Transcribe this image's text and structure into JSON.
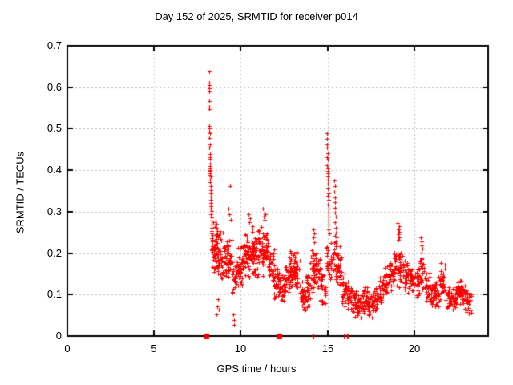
{
  "chart_data": {
    "type": "scatter",
    "title": "Day 152 of 2025, SRMTID for receiver p014",
    "xlabel": "GPS time / hours",
    "ylabel": "SRMTID / TECUs",
    "xlim": [
      0,
      24.25
    ],
    "ylim": [
      0,
      0.7
    ],
    "xticks": [
      0,
      5,
      10,
      15,
      20
    ],
    "yticks": [
      0,
      0.1,
      0.2,
      0.3,
      0.4,
      0.5,
      0.6,
      0.7
    ],
    "grid": true,
    "legend_position": "none",
    "marker": {
      "glyph": "plus",
      "color": "#ff0000",
      "size": 5
    },
    "grid_color": "#bdbdbd",
    "border_color": "#000000",
    "background": "#ffffff",
    "points": [
      [
        8.17,
        0.638
      ],
      [
        8.16,
        0.612
      ],
      [
        8.18,
        0.605
      ],
      [
        8.17,
        0.598
      ],
      [
        8.16,
        0.59
      ],
      [
        8.17,
        0.566
      ],
      [
        8.18,
        0.553
      ],
      [
        8.19,
        0.547
      ],
      [
        8.17,
        0.506
      ],
      [
        8.18,
        0.5
      ],
      [
        8.19,
        0.494
      ],
      [
        8.2,
        0.489
      ],
      [
        8.18,
        0.478
      ],
      [
        8.2,
        0.462
      ],
      [
        8.19,
        0.454
      ],
      [
        8.21,
        0.438
      ],
      [
        8.2,
        0.431
      ],
      [
        8.22,
        0.427
      ],
      [
        8.21,
        0.415
      ],
      [
        8.22,
        0.41
      ],
      [
        8.23,
        0.405
      ],
      [
        8.22,
        0.401
      ],
      [
        8.24,
        0.398
      ],
      [
        8.23,
        0.393
      ],
      [
        8.22,
        0.388
      ],
      [
        8.25,
        0.384
      ],
      [
        8.24,
        0.377
      ],
      [
        8.23,
        0.371
      ],
      [
        8.26,
        0.362
      ],
      [
        8.25,
        0.352
      ],
      [
        8.27,
        0.344
      ],
      [
        8.26,
        0.337
      ],
      [
        8.28,
        0.329
      ],
      [
        8.27,
        0.321
      ],
      [
        8.29,
        0.314
      ],
      [
        8.28,
        0.307
      ],
      [
        8.3,
        0.301
      ],
      [
        8.29,
        0.294
      ],
      [
        8.31,
        0.287
      ],
      [
        8.3,
        0.278
      ],
      [
        8.32,
        0.269
      ],
      [
        8.31,
        0.261
      ],
      [
        8.33,
        0.254
      ],
      [
        8.32,
        0.247
      ],
      [
        8.34,
        0.239
      ],
      [
        8.33,
        0.231
      ],
      [
        8.56,
        0.278
      ],
      [
        8.6,
        0.27
      ],
      [
        8.58,
        0.261
      ],
      [
        8.62,
        0.253
      ],
      [
        8.57,
        0.246
      ],
      [
        8.61,
        0.239
      ],
      [
        8.59,
        0.231
      ],
      [
        8.63,
        0.224
      ],
      [
        8.6,
        0.052
      ],
      [
        8.62,
        0.071
      ],
      [
        8.7,
        0.088
      ],
      [
        8.73,
        0.064
      ],
      [
        9.58,
        0.052
      ],
      [
        9.6,
        0.027
      ],
      [
        9.62,
        0.039
      ],
      [
        9.38,
        0.362
      ],
      [
        9.3,
        0.307
      ],
      [
        9.35,
        0.294
      ],
      [
        9.42,
        0.281
      ],
      [
        10.45,
        0.294
      ],
      [
        10.52,
        0.284
      ],
      [
        10.48,
        0.274
      ],
      [
        11.28,
        0.307
      ],
      [
        11.34,
        0.297
      ],
      [
        11.31,
        0.289
      ],
      [
        11.38,
        0.281
      ],
      [
        11.42,
        0.293
      ],
      [
        14.18,
        0.257
      ],
      [
        14.22,
        0.247
      ],
      [
        14.2,
        0.237
      ],
      [
        14.24,
        0.227
      ],
      [
        14.97,
        0.49
      ],
      [
        14.98,
        0.475
      ],
      [
        14.96,
        0.462
      ],
      [
        14.98,
        0.455
      ],
      [
        14.99,
        0.44
      ],
      [
        14.97,
        0.432
      ],
      [
        15.0,
        0.425
      ],
      [
        14.98,
        0.412
      ],
      [
        15.01,
        0.405
      ],
      [
        14.99,
        0.398
      ],
      [
        15.0,
        0.392
      ],
      [
        15.02,
        0.385
      ],
      [
        15.0,
        0.378
      ],
      [
        15.03,
        0.368
      ],
      [
        15.01,
        0.355
      ],
      [
        15.04,
        0.345
      ],
      [
        15.02,
        0.338
      ],
      [
        15.05,
        0.328
      ],
      [
        15.03,
        0.318
      ],
      [
        15.06,
        0.308
      ],
      [
        15.04,
        0.298
      ],
      [
        15.07,
        0.288
      ],
      [
        15.05,
        0.278
      ],
      [
        15.08,
        0.268
      ],
      [
        15.06,
        0.258
      ],
      [
        15.09,
        0.248
      ],
      [
        15.38,
        0.375
      ],
      [
        15.42,
        0.362
      ],
      [
        15.4,
        0.348
      ],
      [
        15.44,
        0.335
      ],
      [
        15.41,
        0.322
      ],
      [
        15.45,
        0.31
      ],
      [
        15.43,
        0.298
      ],
      [
        15.47,
        0.288
      ],
      [
        15.44,
        0.275
      ],
      [
        15.48,
        0.262
      ],
      [
        15.46,
        0.25
      ],
      [
        15.5,
        0.238
      ],
      [
        19.05,
        0.272
      ],
      [
        19.1,
        0.265
      ],
      [
        19.08,
        0.258
      ],
      [
        19.12,
        0.252
      ],
      [
        19.06,
        0.245
      ],
      [
        19.14,
        0.238
      ],
      [
        19.09,
        0.232
      ],
      [
        20.38,
        0.238
      ],
      [
        20.42,
        0.228
      ],
      [
        20.4,
        0.218
      ],
      [
        20.44,
        0.21
      ],
      [
        20.41,
        0.202
      ]
    ],
    "zero_markers": [
      {
        "t": 7.97,
        "w": 0.22
      },
      {
        "t": 12.2,
        "w": 0.22
      },
      {
        "t": 14.2,
        "w": 0.05
      },
      {
        "t": 16.0,
        "w": 0.05
      },
      {
        "t": 16.15,
        "w": 0.05
      }
    ],
    "band_bins": [
      [
        8.3,
        8.6,
        40,
        0.14,
        0.28
      ],
      [
        8.6,
        8.9,
        36,
        0.13,
        0.27
      ],
      [
        8.9,
        9.2,
        32,
        0.13,
        0.25
      ],
      [
        9.2,
        9.5,
        28,
        0.13,
        0.24
      ],
      [
        9.5,
        9.8,
        28,
        0.09,
        0.2
      ],
      [
        9.8,
        10.1,
        32,
        0.11,
        0.22
      ],
      [
        10.1,
        10.4,
        36,
        0.13,
        0.26
      ],
      [
        10.4,
        10.7,
        36,
        0.14,
        0.27
      ],
      [
        10.7,
        11.0,
        36,
        0.12,
        0.25
      ],
      [
        11.0,
        11.3,
        36,
        0.14,
        0.27
      ],
      [
        11.3,
        11.6,
        36,
        0.15,
        0.27
      ],
      [
        11.6,
        11.9,
        32,
        0.12,
        0.23
      ],
      [
        11.9,
        12.2,
        30,
        0.08,
        0.18
      ],
      [
        12.2,
        12.5,
        30,
        0.07,
        0.16
      ],
      [
        12.5,
        12.8,
        30,
        0.09,
        0.19
      ],
      [
        12.8,
        13.1,
        32,
        0.11,
        0.21
      ],
      [
        13.1,
        13.4,
        32,
        0.1,
        0.22
      ],
      [
        13.4,
        13.7,
        30,
        0.05,
        0.14
      ],
      [
        13.7,
        14.0,
        30,
        0.06,
        0.15
      ],
      [
        14.0,
        14.3,
        32,
        0.1,
        0.21
      ],
      [
        14.3,
        14.6,
        30,
        0.1,
        0.22
      ],
      [
        14.6,
        14.9,
        26,
        0.07,
        0.16
      ],
      [
        14.9,
        15.2,
        24,
        0.13,
        0.24
      ],
      [
        15.2,
        15.5,
        26,
        0.13,
        0.25
      ],
      [
        15.5,
        15.8,
        28,
        0.11,
        0.22
      ],
      [
        15.8,
        16.1,
        28,
        0.07,
        0.16
      ],
      [
        16.1,
        16.4,
        28,
        0.05,
        0.14
      ],
      [
        16.4,
        16.7,
        28,
        0.04,
        0.12
      ],
      [
        16.7,
        17.0,
        28,
        0.04,
        0.12
      ],
      [
        17.0,
        17.3,
        28,
        0.05,
        0.13
      ],
      [
        17.3,
        17.6,
        28,
        0.03,
        0.11
      ],
      [
        17.6,
        17.9,
        28,
        0.05,
        0.13
      ],
      [
        17.9,
        18.2,
        28,
        0.07,
        0.15
      ],
      [
        18.2,
        18.5,
        28,
        0.08,
        0.17
      ],
      [
        18.5,
        18.8,
        28,
        0.1,
        0.19
      ],
      [
        18.8,
        19.1,
        28,
        0.12,
        0.23
      ],
      [
        19.1,
        19.4,
        28,
        0.11,
        0.22
      ],
      [
        19.4,
        19.7,
        28,
        0.09,
        0.19
      ],
      [
        19.7,
        20.0,
        28,
        0.09,
        0.18
      ],
      [
        20.0,
        20.3,
        28,
        0.08,
        0.17
      ],
      [
        20.3,
        20.6,
        28,
        0.09,
        0.2
      ],
      [
        20.6,
        20.9,
        26,
        0.07,
        0.16
      ],
      [
        20.9,
        21.2,
        26,
        0.06,
        0.13
      ],
      [
        21.2,
        21.5,
        26,
        0.07,
        0.15
      ],
      [
        21.5,
        21.8,
        26,
        0.09,
        0.18
      ],
      [
        21.8,
        22.1,
        26,
        0.06,
        0.13
      ],
      [
        22.1,
        22.4,
        28,
        0.05,
        0.12
      ],
      [
        22.4,
        22.7,
        28,
        0.07,
        0.15
      ],
      [
        22.7,
        23.0,
        26,
        0.06,
        0.13
      ],
      [
        23.0,
        23.3,
        20,
        0.05,
        0.11
      ]
    ]
  }
}
